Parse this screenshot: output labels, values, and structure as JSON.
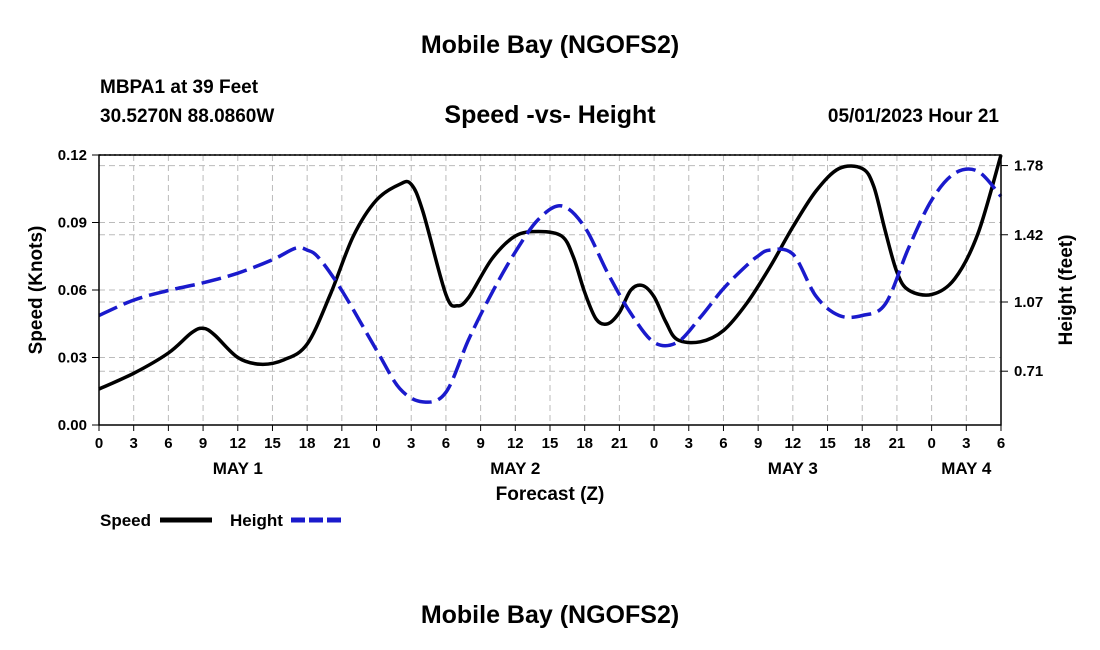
{
  "header": {
    "title": "Mobile Bay (NGOFS2)",
    "station": "MBPA1 at 39 Feet",
    "coords": "30.5270N  88.0860W",
    "chart_title": "Speed -vs- Height",
    "run_time": "05/01/2023 Hour 21"
  },
  "footer": {
    "title": "Mobile Bay (NGOFS2)"
  },
  "colors": {
    "speed": "#000000",
    "height": "#1a1acc",
    "grid": "#bbbbbb"
  },
  "chart_data": {
    "type": "line",
    "title": "Speed -vs- Height",
    "xlabel": "Forecast (Z)",
    "ylabel": "Speed (Knots)",
    "ylabel_right": "Height (feet)",
    "x_range": [
      0,
      78
    ],
    "ylim": [
      0,
      0.12
    ],
    "ylim_right": [
      0.43,
      1.835
    ],
    "x_ticks": [
      0,
      3,
      6,
      9,
      12,
      15,
      18,
      21,
      24,
      27,
      30,
      33,
      36,
      39,
      42,
      45,
      48,
      51,
      54,
      57,
      60,
      63,
      66,
      69,
      72,
      75,
      78
    ],
    "x_tick_labels": [
      "0",
      "3",
      "6",
      "9",
      "12",
      "15",
      "18",
      "21",
      "0",
      "3",
      "6",
      "9",
      "12",
      "15",
      "18",
      "21",
      "0",
      "3",
      "6",
      "9",
      "12",
      "15",
      "18",
      "21",
      "0",
      "3",
      "6"
    ],
    "day_labels": [
      {
        "label": "MAY 1",
        "x": 12
      },
      {
        "label": "MAY 2",
        "x": 36
      },
      {
        "label": "MAY 3",
        "x": 60
      },
      {
        "label": "MAY 4",
        "x": 75
      }
    ],
    "y_ticks": [
      0,
      0.03,
      0.06,
      0.09,
      0.12
    ],
    "y_tick_labels": [
      "0.00",
      "0.03",
      "0.06",
      "0.09",
      "0.12"
    ],
    "y_ticks_right": [
      0.71,
      1.07,
      1.42,
      1.78
    ],
    "y_tick_labels_right": [
      "0.71",
      "1.07",
      "1.42",
      "1.78"
    ],
    "grid": true,
    "legend": [
      "Speed",
      "Height"
    ],
    "series": [
      {
        "name": "Speed",
        "axis": "left",
        "style": "solid",
        "x": [
          0,
          3,
          6,
          8,
          9,
          10,
          12,
          14,
          16,
          18,
          20,
          22,
          24,
          26,
          27,
          28,
          30,
          31,
          32,
          34,
          36,
          38,
          40,
          41,
          42,
          43,
          44,
          45,
          46,
          47,
          48,
          49,
          50,
          52,
          54,
          56,
          58,
          60,
          62,
          64,
          66,
          67,
          68,
          69,
          70,
          72,
          74,
          76,
          78
        ],
        "y": [
          0.016,
          0.023,
          0.032,
          0.041,
          0.043,
          0.04,
          0.03,
          0.027,
          0.029,
          0.036,
          0.058,
          0.084,
          0.1,
          0.107,
          0.107,
          0.095,
          0.058,
          0.053,
          0.057,
          0.074,
          0.084,
          0.086,
          0.084,
          0.075,
          0.059,
          0.047,
          0.045,
          0.05,
          0.06,
          0.062,
          0.057,
          0.046,
          0.038,
          0.037,
          0.042,
          0.054,
          0.07,
          0.088,
          0.104,
          0.114,
          0.114,
          0.106,
          0.086,
          0.068,
          0.06,
          0.058,
          0.065,
          0.085,
          0.12
        ]
      },
      {
        "name": "Height",
        "axis": "right",
        "style": "dashed",
        "x": [
          0,
          3,
          6,
          9,
          12,
          15,
          17,
          18,
          19,
          21,
          24,
          26,
          28,
          30,
          32,
          34,
          36,
          38,
          40,
          42,
          44,
          46,
          48,
          50,
          52,
          54,
          56,
          57,
          58,
          60,
          62,
          64,
          66,
          68,
          70,
          72,
          74,
          76,
          78
        ],
        "y": [
          1.0,
          1.08,
          1.13,
          1.17,
          1.22,
          1.29,
          1.35,
          1.34,
          1.3,
          1.13,
          0.82,
          0.62,
          0.55,
          0.6,
          0.88,
          1.12,
          1.33,
          1.5,
          1.57,
          1.46,
          1.22,
          1.01,
          0.86,
          0.86,
          0.99,
          1.14,
          1.26,
          1.31,
          1.34,
          1.32,
          1.1,
          1.0,
          1.0,
          1.06,
          1.35,
          1.6,
          1.74,
          1.75,
          1.62
        ]
      }
    ]
  }
}
